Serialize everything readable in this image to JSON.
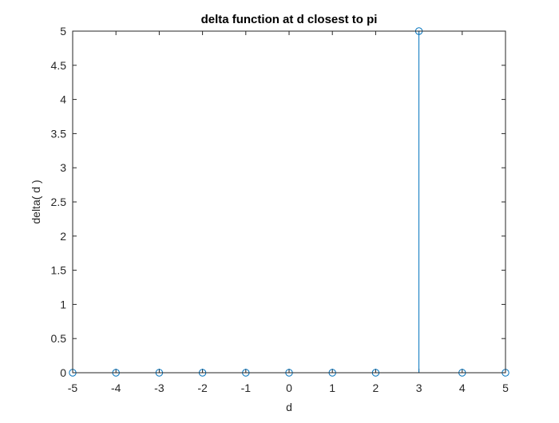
{
  "chart_data": {
    "type": "stem",
    "title": "delta function at d closest to pi",
    "xlabel": "d",
    "ylabel": "delta( d )",
    "xlim": [
      -5,
      5
    ],
    "ylim": [
      0,
      5
    ],
    "x_ticks": [
      -5,
      -4,
      -3,
      -2,
      -1,
      0,
      1,
      2,
      3,
      4,
      5
    ],
    "x_tick_labels": [
      "-5",
      "-4",
      "-3",
      "-2",
      "-1",
      "0",
      "1",
      "2",
      "3",
      "4",
      "5"
    ],
    "y_ticks": [
      0,
      0.5,
      1,
      1.5,
      2,
      2.5,
      3,
      3.5,
      4,
      4.5,
      5
    ],
    "y_tick_labels": [
      "0",
      "0.5",
      "1",
      "1.5",
      "2",
      "2.5",
      "3",
      "3.5",
      "4",
      "4.5",
      "5"
    ],
    "grid": false,
    "box": true,
    "series": [
      {
        "x": [
          -5,
          -4,
          -3,
          -2,
          -1,
          0,
          1,
          2,
          3,
          4,
          5
        ],
        "y": [
          0,
          0,
          0,
          0,
          0,
          0,
          0,
          0,
          5,
          0,
          0
        ],
        "color": "#0072BD",
        "marker": "circle"
      }
    ]
  }
}
